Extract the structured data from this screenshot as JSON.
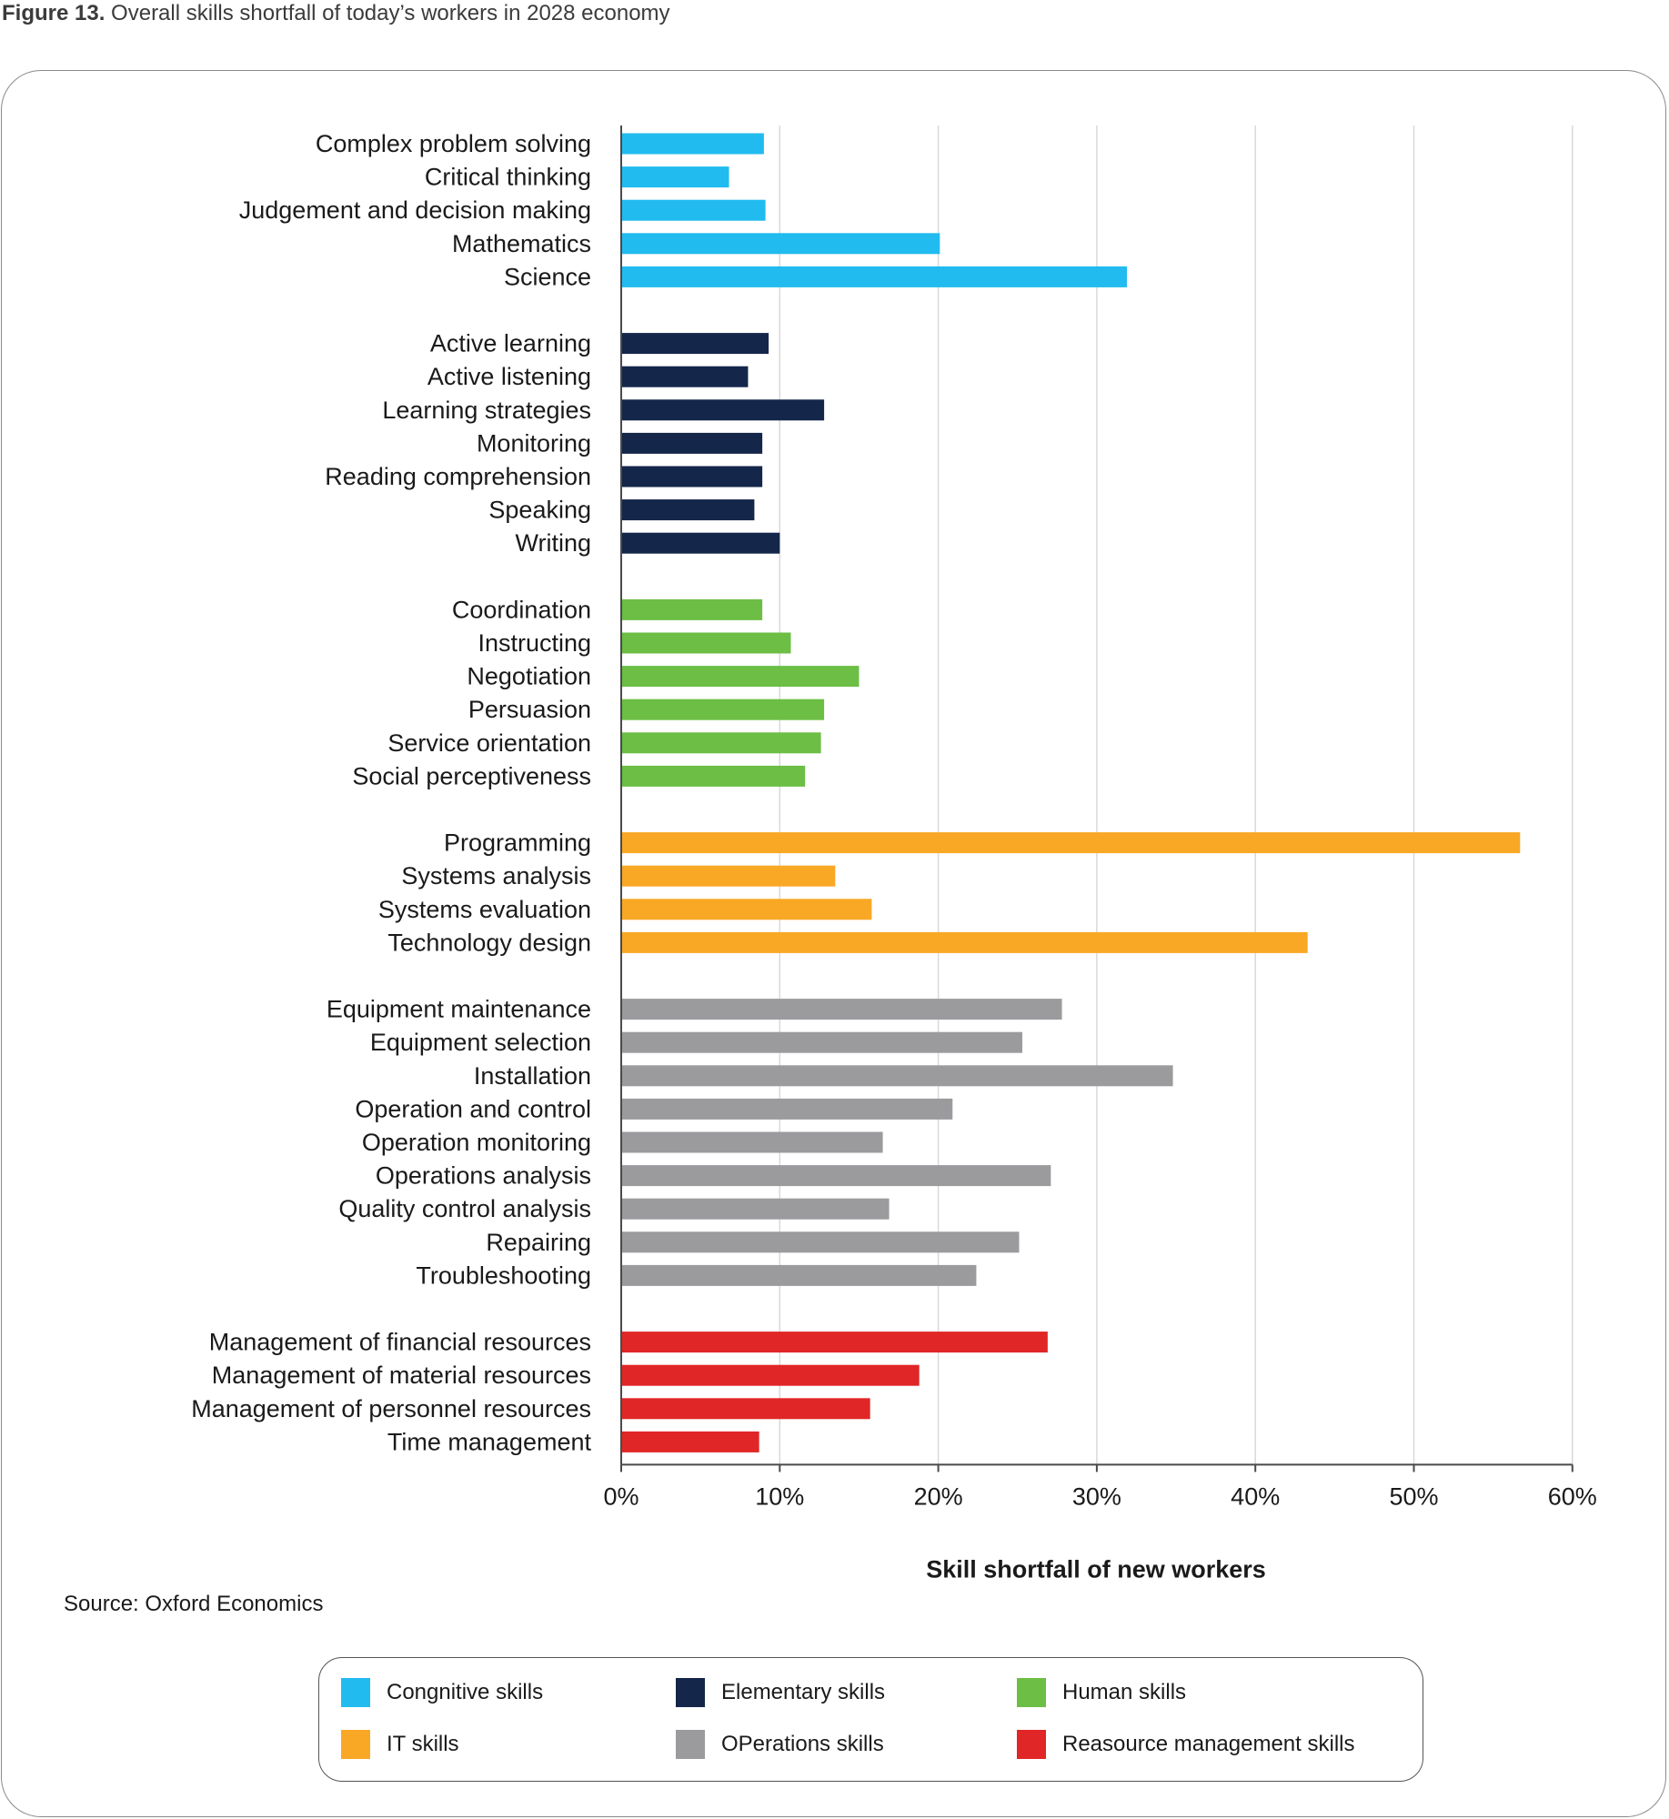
{
  "caption": {
    "number": "Figure 13.",
    "text": "Overall skills shortfall of today’s workers in 2028 economy"
  },
  "source": "Source: Oxford Economics",
  "colors": {
    "cognitive": "#21BBEF",
    "elementary": "#14264A",
    "human": "#6CBE45",
    "it": "#F9A825",
    "operations": "#9B9B9E",
    "resource": "#E02626",
    "gridline": "#d9d9d9",
    "axis": "#4a4a4a"
  },
  "legend": [
    {
      "label": "Congnitive skills",
      "color_key": "cognitive"
    },
    {
      "label": "Elementary skills",
      "color_key": "elementary"
    },
    {
      "label": "Human skills",
      "color_key": "human"
    },
    {
      "label": "IT skills",
      "color_key": "it"
    },
    {
      "label": "OPerations skills",
      "color_key": "operations"
    },
    {
      "label": "Reasource management skills",
      "color_key": "resource"
    }
  ],
  "chart_data": {
    "type": "bar",
    "orientation": "horizontal",
    "title": "",
    "xlabel": "Skill shortfall of new workers",
    "ylabel": "",
    "xlim": [
      0,
      60
    ],
    "x_ticks": [
      "0%",
      "10%",
      "20%",
      "30%",
      "40%",
      "50%",
      "60%"
    ],
    "grid": true,
    "legend_position": "bottom",
    "groups": [
      {
        "name": "Congnitive skills",
        "color_key": "cognitive",
        "categories": [
          "Complex problem solving",
          "Critical thinking",
          "Judgement and decision making",
          "Mathematics",
          "Science"
        ],
        "values": [
          9.0,
          6.8,
          9.1,
          20.1,
          31.9
        ]
      },
      {
        "name": "Elementary skills",
        "color_key": "elementary",
        "categories": [
          "Active learning",
          "Active listening",
          "Learning strategies",
          "Monitoring",
          "Reading comprehension",
          "Speaking",
          "Writing"
        ],
        "values": [
          9.3,
          8.0,
          12.8,
          8.9,
          8.9,
          8.4,
          10.0
        ]
      },
      {
        "name": "Human skills",
        "color_key": "human",
        "categories": [
          "Coordination",
          "Instructing",
          "Negotiation",
          "Persuasion",
          "Service orientation",
          "Social perceptiveness"
        ],
        "values": [
          8.9,
          10.7,
          15.0,
          12.8,
          12.6,
          11.6
        ]
      },
      {
        "name": "IT skills",
        "color_key": "it",
        "categories": [
          "Programming",
          "Systems analysis",
          "Systems evaluation",
          "Technology design"
        ],
        "values": [
          56.7,
          13.5,
          15.8,
          43.3
        ]
      },
      {
        "name": "OPerations skills",
        "color_key": "operations",
        "categories": [
          "Equipment maintenance",
          "Equipment selection",
          "Installation",
          "Operation and control",
          "Operation monitoring",
          "Operations analysis",
          "Quality control analysis",
          "Repairing",
          "Troubleshooting"
        ],
        "values": [
          27.8,
          25.3,
          34.8,
          20.9,
          16.5,
          27.1,
          16.9,
          25.1,
          22.4
        ]
      },
      {
        "name": "Reasource management skills",
        "color_key": "resource",
        "categories": [
          "Management of financial resources",
          "Management of material resources",
          "Management of personnel resources",
          "Time management"
        ],
        "values": [
          26.9,
          18.8,
          15.7,
          8.7
        ]
      }
    ]
  }
}
